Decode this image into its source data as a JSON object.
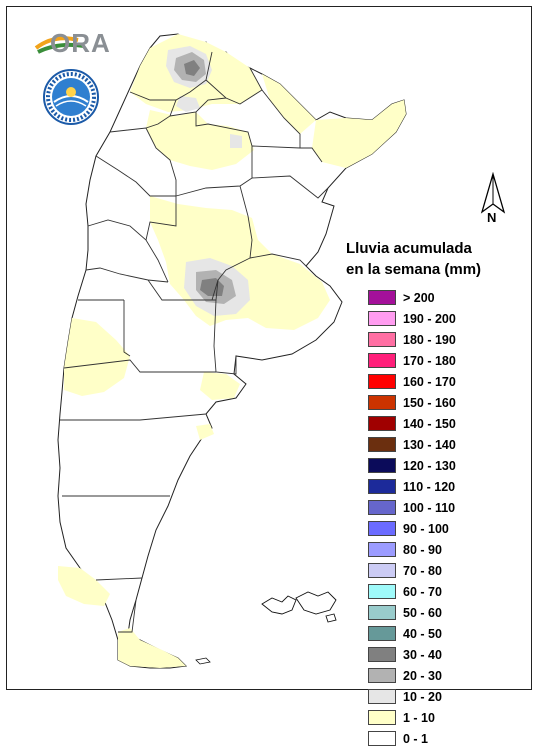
{
  "legend": {
    "title_line1": "Lluvia acumulada",
    "title_line2": "en la semana (mm)",
    "classes": [
      {
        "label": "> 200",
        "color": "#a4109a"
      },
      {
        "label": "190 - 200",
        "color": "#ff9cf0"
      },
      {
        "label": "180 - 190",
        "color": "#ff6fa3"
      },
      {
        "label": "170 - 180",
        "color": "#ff1f7a"
      },
      {
        "label": "160 - 170",
        "color": "#ff0000"
      },
      {
        "label": "150 - 160",
        "color": "#cc3300"
      },
      {
        "label": "140 - 150",
        "color": "#a00000"
      },
      {
        "label": "130 - 140",
        "color": "#6b2f0f"
      },
      {
        "label": "120 - 130",
        "color": "#0b0b5a"
      },
      {
        "label": "110 - 120",
        "color": "#1c2a9a"
      },
      {
        "label": "100 - 110",
        "color": "#6666cc"
      },
      {
        "label": "90 - 100",
        "color": "#6b6bff"
      },
      {
        "label": "80 - 90",
        "color": "#9c9cff"
      },
      {
        "label": "70 - 80",
        "color": "#ccccf5"
      },
      {
        "label": "60 - 70",
        "color": "#9ffafa"
      },
      {
        "label": "50 - 60",
        "color": "#99cccc"
      },
      {
        "label": "40 - 50",
        "color": "#669999"
      },
      {
        "label": "30 - 40",
        "color": "#808080"
      },
      {
        "label": "20 - 30",
        "color": "#b2b2b2"
      },
      {
        "label": "10 - 20",
        "color": "#e6e6e6"
      },
      {
        "label": "1 - 10",
        "color": "#ffffc8"
      },
      {
        "label": "0 - 1",
        "color": "#ffffff"
      }
    ]
  },
  "north_arrow": {
    "label": "N"
  },
  "logos": {
    "ora": "ORA"
  }
}
